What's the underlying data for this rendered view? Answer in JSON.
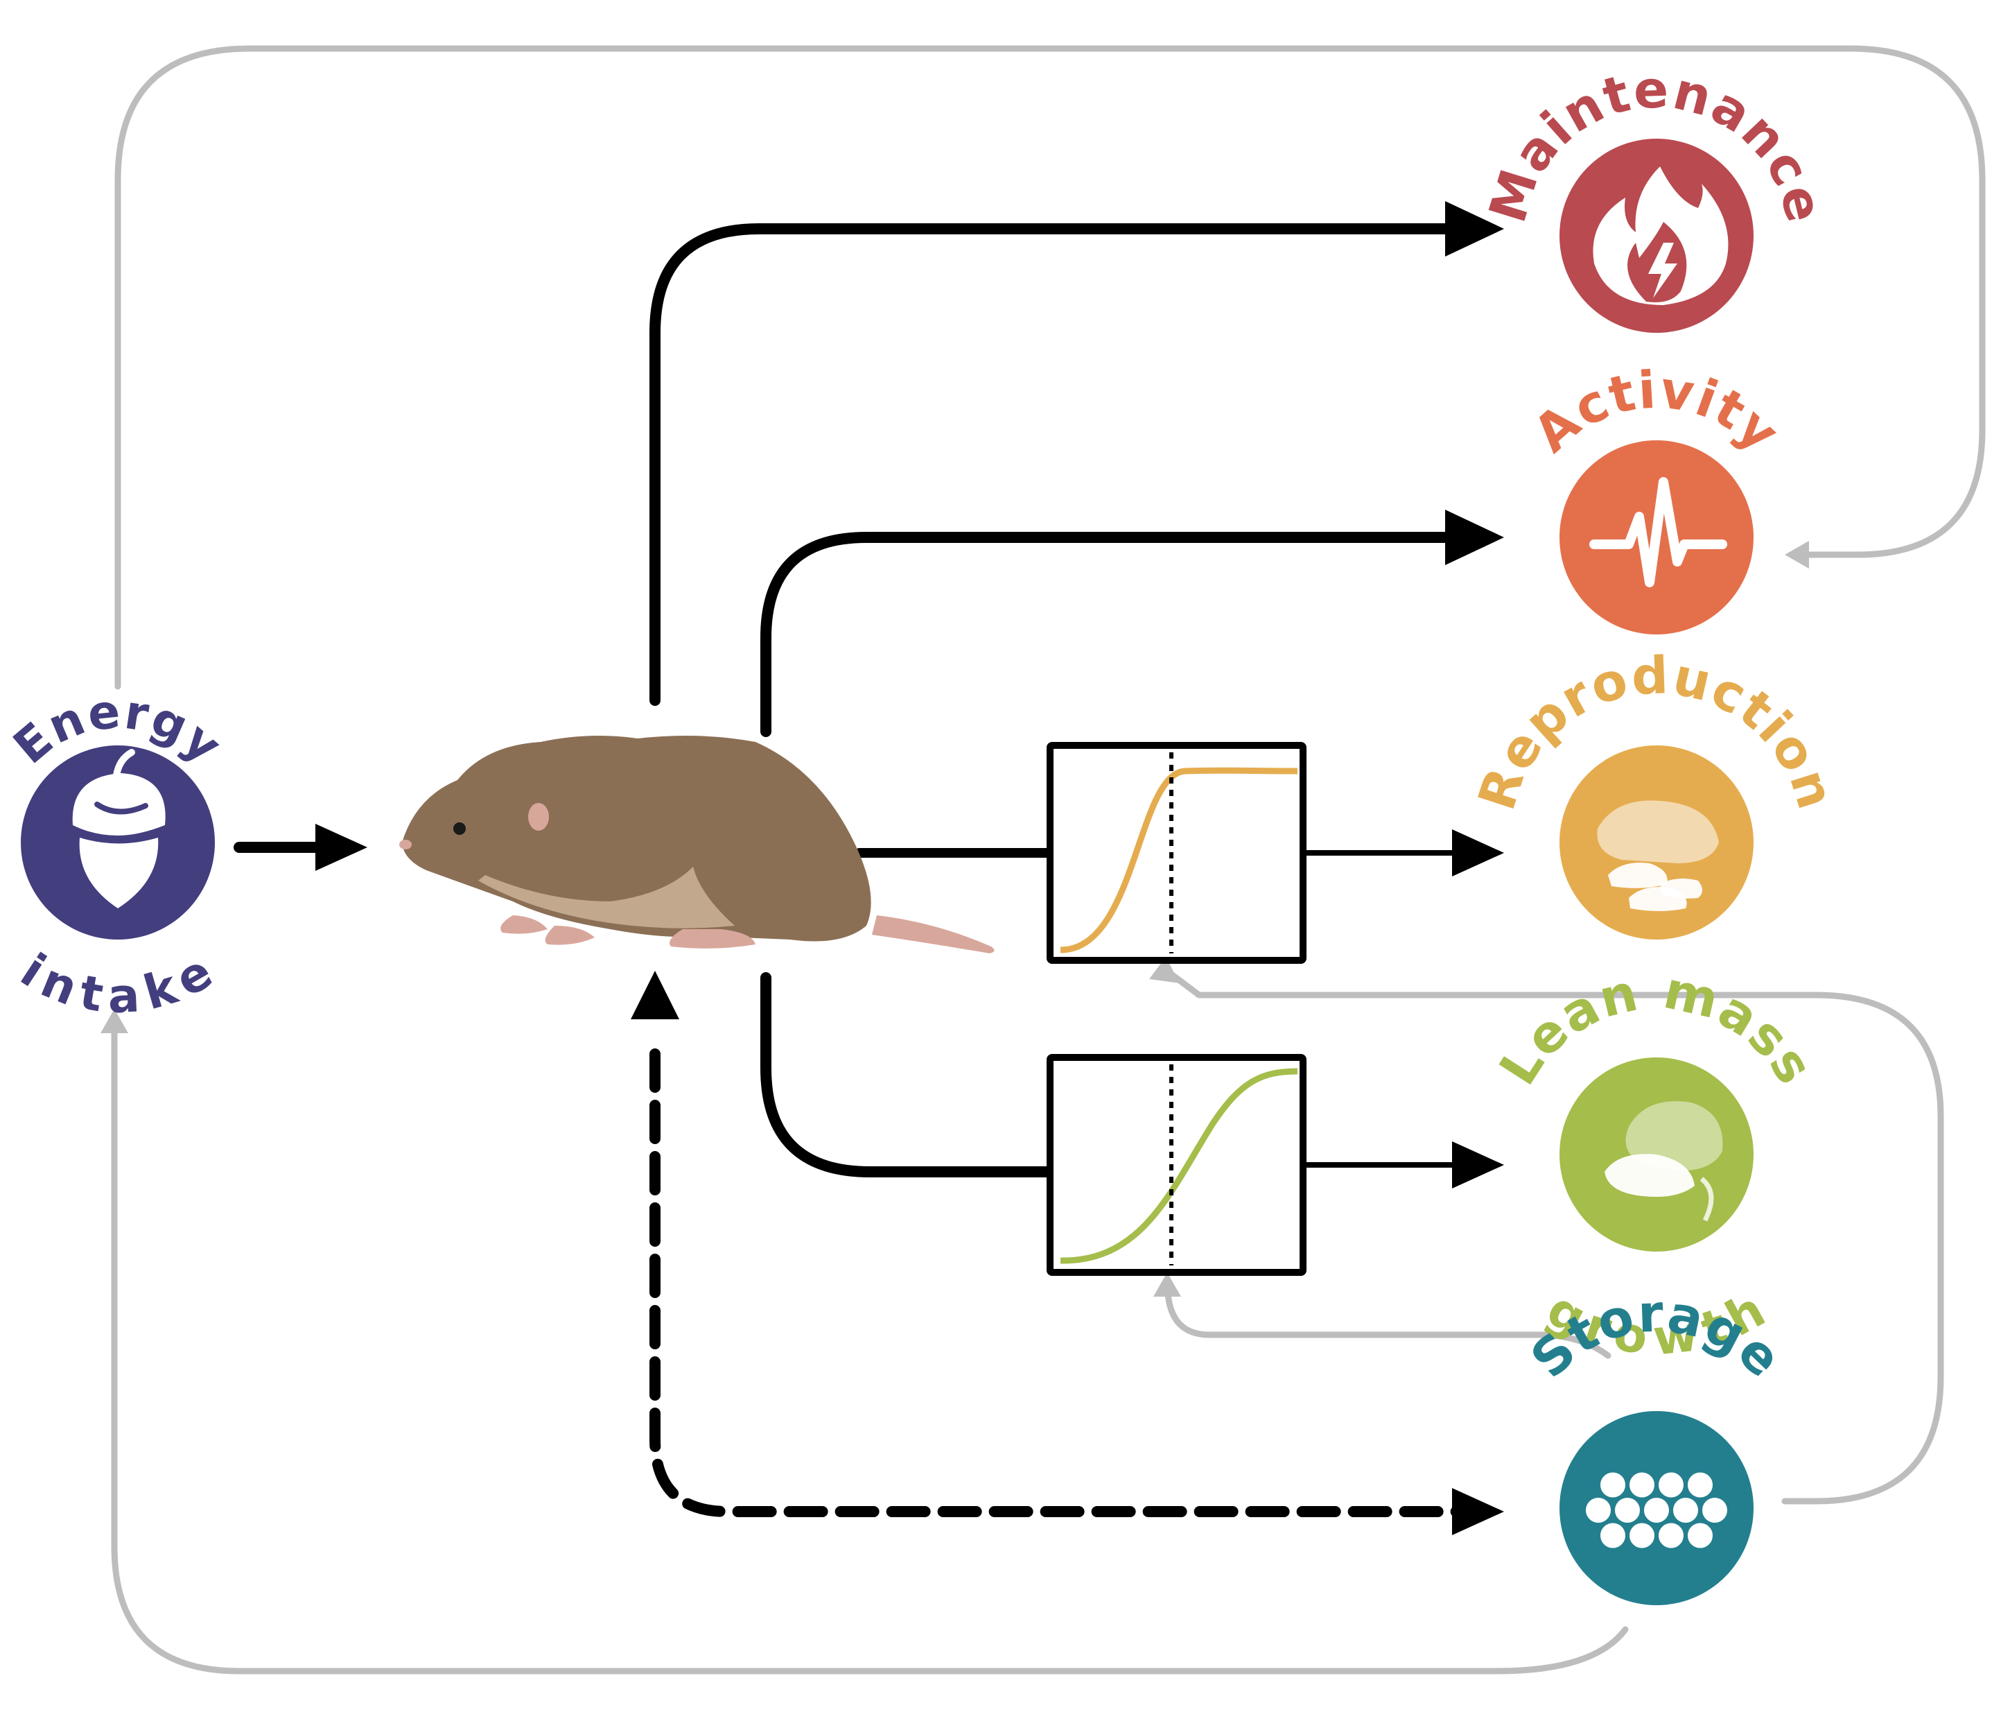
{
  "nodes": {
    "energy": {
      "line1": "Energy",
      "line2": "intake",
      "color": "#433e7e",
      "icon": "acorn-icon"
    },
    "maintenance": {
      "label": "Maintenance",
      "color": "#b94a50",
      "icon": "flame-icon"
    },
    "activity": {
      "label": "Activity",
      "color": "#e4704b",
      "icon": "pulse-icon"
    },
    "reproduction": {
      "label": "Reproduction",
      "color": "#e5ac4f",
      "icon": "mouse-with-pups-icon"
    },
    "lean": {
      "line1": "Lean mass",
      "line2": "growth",
      "color": "#a5bd4b",
      "icon": "growing-mouse-icon"
    },
    "storage": {
      "label": "Storage",
      "color": "#237f8e",
      "icon": "fat-cells-icon"
    }
  },
  "colors": {
    "flow": "#000000",
    "feedback": "#bdbdbd",
    "rodent_body": "#8b6f55",
    "rodent_belly": "#c2a88d",
    "rodent_pink": "#d8a79c"
  }
}
